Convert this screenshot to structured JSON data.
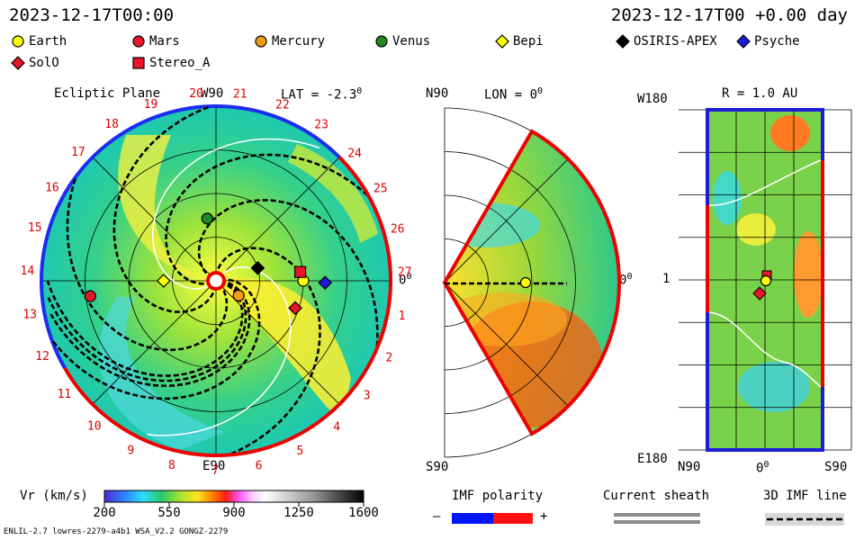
{
  "header": {
    "left_time": "2023-12-17T00:00",
    "right_time": "2023-12-17T00 +0.00 day"
  },
  "legend": [
    {
      "name": "Earth",
      "shape": "circle",
      "color": "#ffff00"
    },
    {
      "name": "Mars",
      "shape": "circle",
      "color": "#e8162b"
    },
    {
      "name": "Mercury",
      "shape": "circle",
      "color": "#f39c12"
    },
    {
      "name": "Venus",
      "shape": "circle",
      "color": "#1f8a1f"
    },
    {
      "name": "Bepi",
      "shape": "diamond",
      "color": "#ffff00"
    },
    {
      "name": "OSIRIS-APEX",
      "shape": "diamond",
      "color": "#000000"
    },
    {
      "name": "Psyche",
      "shape": "diamond",
      "color": "#1c1cd8"
    },
    {
      "name": "SolO",
      "shape": "diamond",
      "color": "#e8162b"
    },
    {
      "name": "Stereo_A",
      "shape": "square",
      "color": "#e8162b"
    }
  ],
  "panels": {
    "ecliptic": {
      "title": "Ecliptic Plane",
      "top_label": "W90",
      "bottom_label": "E90",
      "right_label": "0",
      "right_sup": "0",
      "lat_label": "LAT = -2.3",
      "lat_sup": "0",
      "carrington_labels": [
        "20",
        "21",
        "22",
        "23",
        "24",
        "25",
        "26",
        "27",
        "1",
        "2",
        "3",
        "4",
        "5",
        "6",
        "7",
        "8",
        "9",
        "10",
        "11",
        "12",
        "13",
        "14",
        "15",
        "16",
        "17",
        "18",
        "19"
      ]
    },
    "meridional": {
      "top_label": "N90",
      "bottom_label": "S90",
      "right_label": "0",
      "right_sup": "0",
      "lon_label": "LON = 0",
      "lon_sup": "0"
    },
    "radial": {
      "title": "R = 1.0 AU",
      "top_label": "W180",
      "bottom_label": "E180",
      "left_mid_label": "1",
      "x_left": "N90",
      "x_mid": "0",
      "x_mid_sup": "0",
      "x_right": "S90"
    }
  },
  "colorbar": {
    "label": "Vr (km/s)",
    "ticks": [
      "200",
      "550",
      "900",
      "1250",
      "1600"
    ],
    "range": [
      200,
      1600
    ]
  },
  "imf": {
    "label": "IMF polarity",
    "minus": "–",
    "plus": "+"
  },
  "current_sheath": {
    "label": "Current sheath"
  },
  "imf_line": {
    "label": "3D IMF line"
  },
  "footer": "ENLIL-2.7 lowres-2279-a4b1 WSA_V2.2 GONGZ-2279",
  "chart_data": {
    "type": "heatmap",
    "title": "Vr (km/s)",
    "value_range": [
      200,
      1600
    ],
    "bodies": [
      {
        "name": "Earth",
        "r_au": 1.0,
        "lon_deg": 0
      },
      {
        "name": "Mars",
        "r_au": 1.45,
        "lon_deg": -173
      },
      {
        "name": "Mercury",
        "r_au": 0.31,
        "lon_deg": -33
      },
      {
        "name": "Venus",
        "r_au": 0.72,
        "lon_deg": 98
      },
      {
        "name": "Bepi",
        "r_au": 0.6,
        "lon_deg": 180
      },
      {
        "name": "OSIRIS-APEX",
        "r_au": 0.5,
        "lon_deg": 17
      },
      {
        "name": "Psyche",
        "r_au": 1.25,
        "lon_deg": -1
      },
      {
        "name": "SolO",
        "r_au": 0.96,
        "lon_deg": -19
      },
      {
        "name": "Stereo_A",
        "r_au": 0.97,
        "lon_deg": 6
      }
    ]
  }
}
